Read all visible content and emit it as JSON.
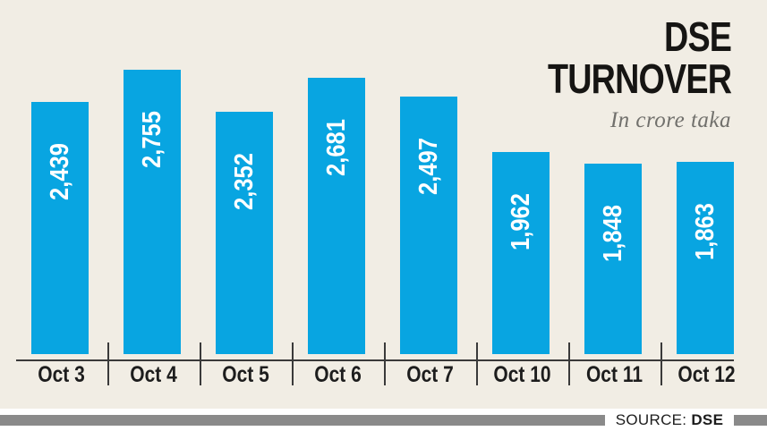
{
  "chart_data": {
    "type": "bar",
    "title": "DSE TURNOVER",
    "title_lines": [
      "DSE",
      "TURNOVER"
    ],
    "subtitle": "In crore taka",
    "categories": [
      "Oct 3",
      "Oct 4",
      "Oct 5",
      "Oct 6",
      "Oct 7",
      "Oct 10",
      "Oct 11",
      "Oct 12"
    ],
    "values": [
      2439,
      2755,
      2352,
      2681,
      2497,
      1962,
      1848,
      1863
    ],
    "value_labels": [
      "2,439",
      "2,755",
      "2,352",
      "2,681",
      "2,497",
      "1,962",
      "1,848",
      "1,863"
    ],
    "ylim": [
      0,
      2755
    ],
    "orientation": "vertical",
    "value_label_rotation": -90,
    "grid": false,
    "legend": null,
    "bar_color": "#08a5e1",
    "value_label_color": "#ffffff",
    "background_color": "#f1ede4",
    "axis_color": "#3a3a3a"
  },
  "source": {
    "label": "SOURCE:",
    "value": "DSE"
  },
  "colors": {
    "divider_gray": "#8a8a8a",
    "subtitle_gray": "#71706c",
    "text_dark": "#1d1d1d"
  }
}
